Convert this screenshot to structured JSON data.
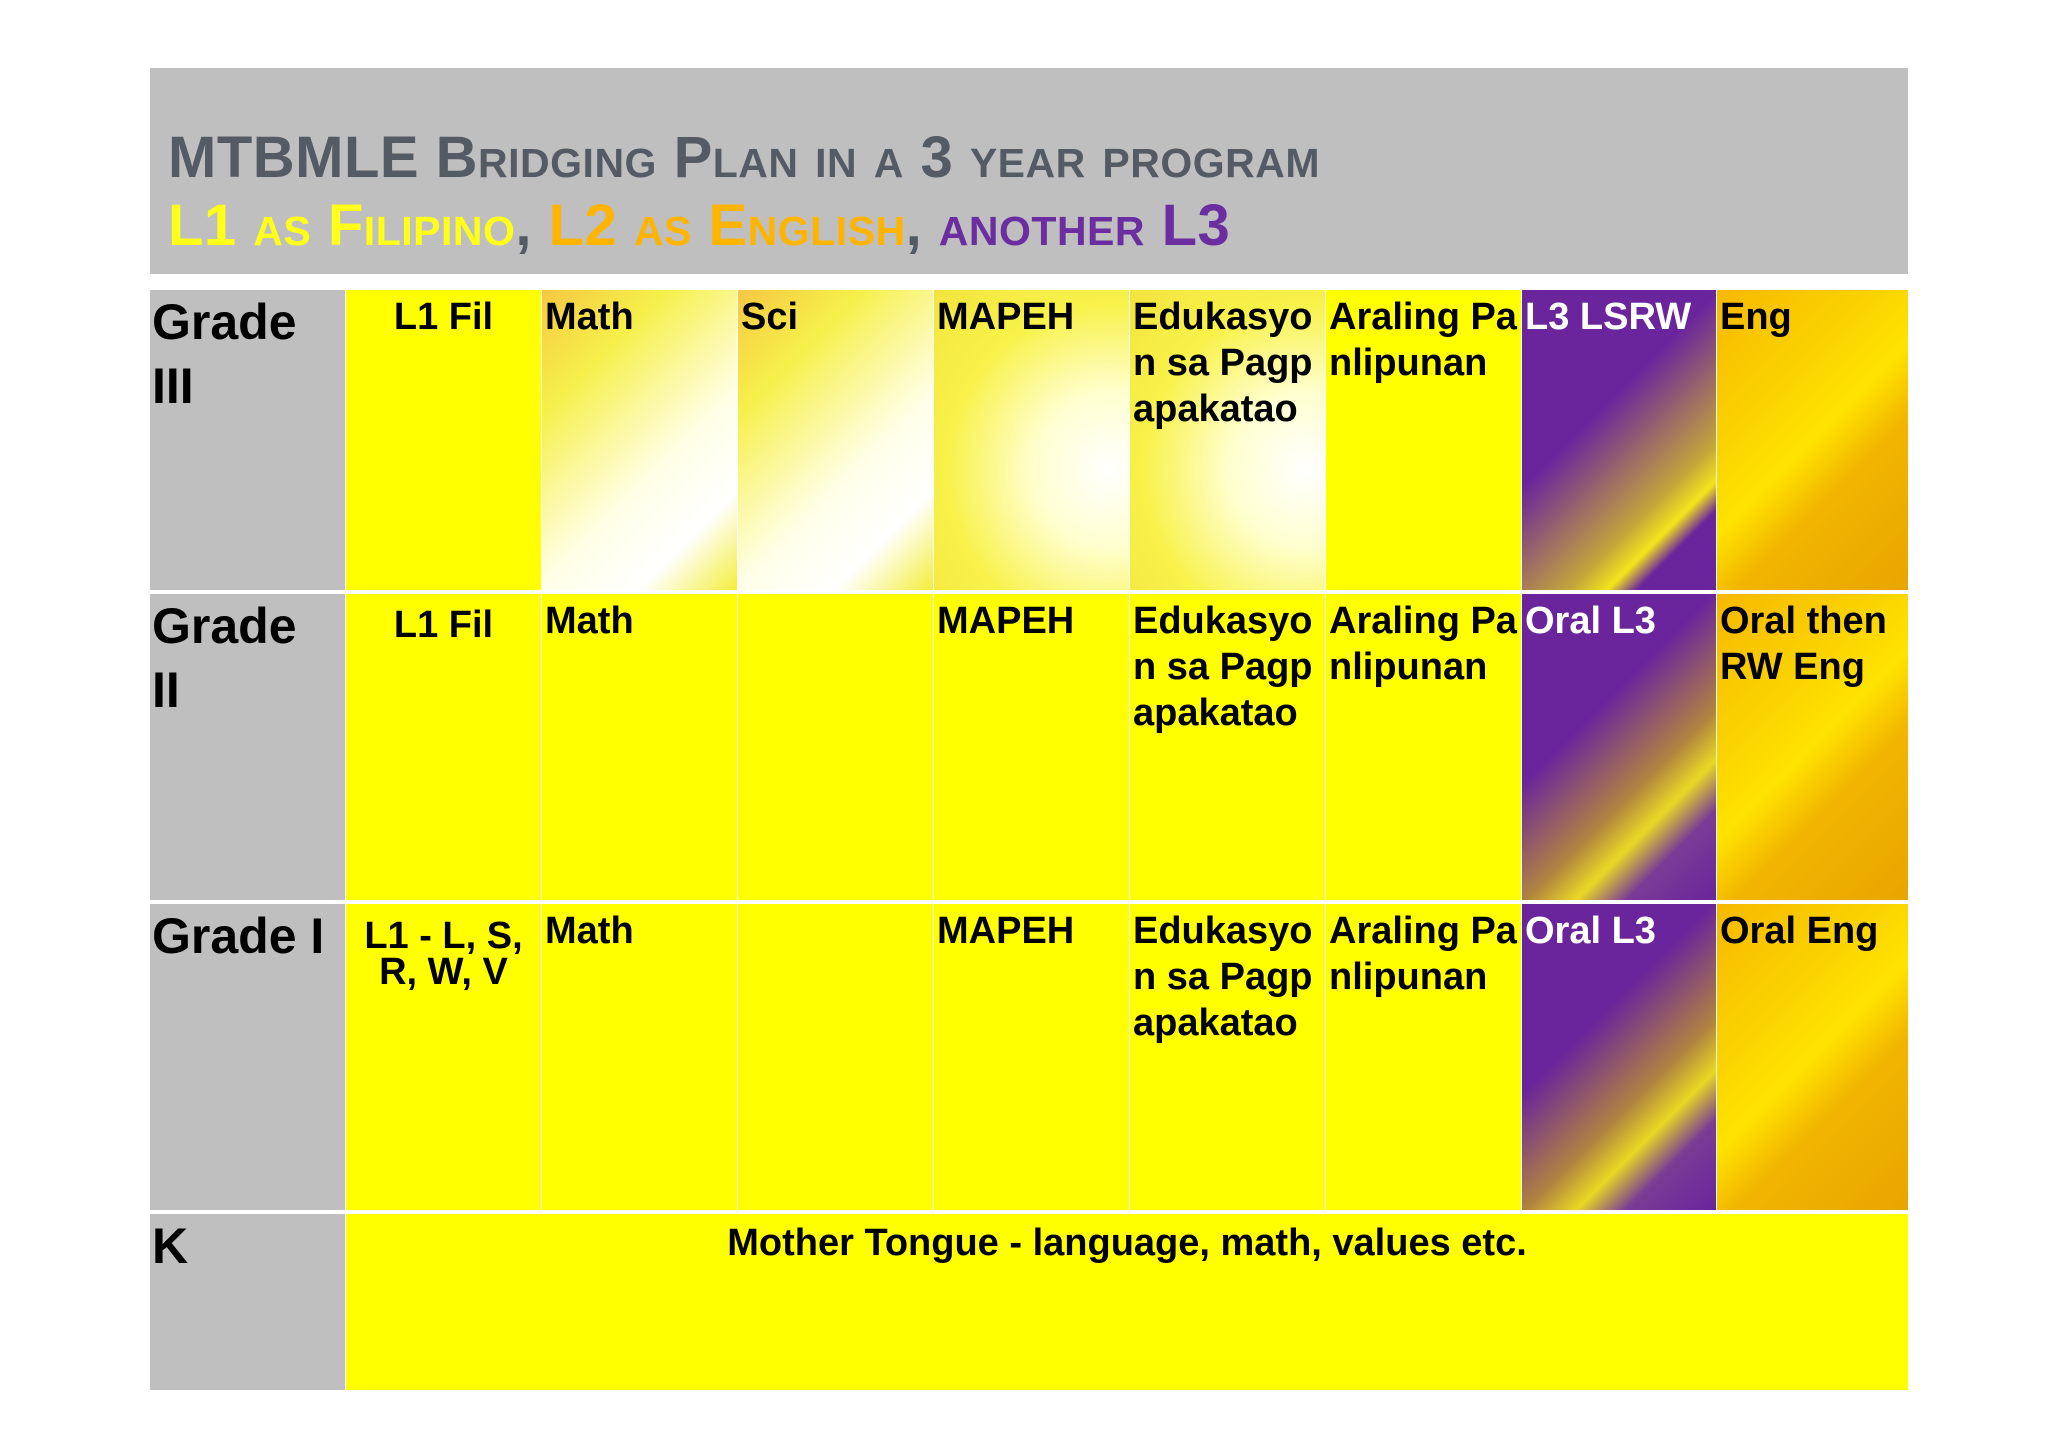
{
  "title": {
    "line1": "MTBMLE Bridging Plan in a 3 year program",
    "line2": {
      "part1": "L1 as Filipino",
      "comma1": ", ",
      "part2": "L2 as English",
      "comma2": ", ",
      "part3": "another L3"
    }
  },
  "rows": {
    "grade3": {
      "label": "Grade III",
      "cells": [
        "L1 Fil",
        "Math",
        "Sci",
        "MAPEH",
        "Edukasyon sa Pagpapakatao",
        "Araling Panlipunan",
        "L3 LSRW",
        "Eng"
      ]
    },
    "grade2": {
      "label": "Grade II",
      "cells": [
        "L1 Fil",
        "Math",
        "",
        "MAPEH",
        "Edukasyon sa Pagpapakatao",
        "Araling Panlipunan",
        "Oral L3",
        "Oral then RW Eng"
      ]
    },
    "grade1": {
      "label": "Grade I",
      "cells": [
        "L1 - L, S, R, W, V",
        "Math",
        "",
        "MAPEH",
        "Edukasyon sa Pagpapakatao",
        "Araling Panlipunan",
        "Oral L3",
        "Oral Eng"
      ]
    },
    "k": {
      "label": "K",
      "cell": "Mother Tongue - language, math, values etc."
    }
  },
  "colors": {
    "yellow": "#ffff00",
    "orange": "#ffb400",
    "purple": "#6a249c",
    "gray": "#bfbfc0",
    "title_gray": "#545b65"
  }
}
